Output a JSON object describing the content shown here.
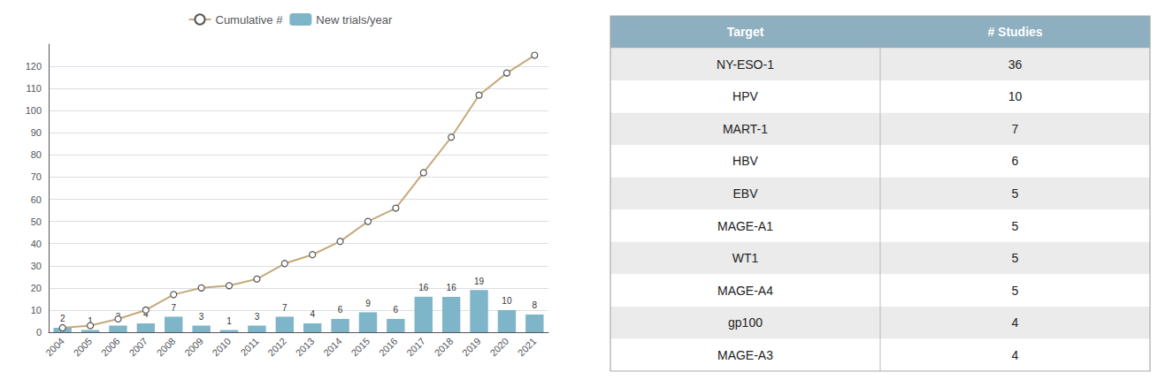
{
  "chart_data": [
    {
      "type": "bar",
      "categories": [
        "2004",
        "2005",
        "2006",
        "2007",
        "2008",
        "2009",
        "2010",
        "2011",
        "2012",
        "2013",
        "2014",
        "2015",
        "2016",
        "2017",
        "2018",
        "2019",
        "2020",
        "2021"
      ],
      "series": [
        {
          "name": "Cumulative #",
          "type": "line",
          "color": "#C4A97A",
          "marker": "circle",
          "values": [
            2,
            3,
            6,
            10,
            17,
            20,
            21,
            24,
            31,
            35,
            41,
            50,
            56,
            72,
            88,
            107,
            117,
            125
          ]
        },
        {
          "name": "New trials/year",
          "type": "bar",
          "color": "#7EB5C8",
          "data_labels": true,
          "values": [
            2,
            1,
            3,
            4,
            7,
            3,
            1,
            3,
            7,
            4,
            6,
            9,
            6,
            16,
            16,
            19,
            10,
            8
          ]
        }
      ],
      "ylim": [
        0,
        130
      ],
      "yticks": [
        0,
        10,
        20,
        30,
        40,
        50,
        60,
        70,
        80,
        90,
        100,
        110,
        120
      ],
      "grid": true,
      "legend": "top"
    },
    {
      "type": "table",
      "columns": [
        "Target",
        "# Studies"
      ],
      "categories": [
        "NY-ESO-1",
        "HPV",
        "MART-1",
        "HBV",
        "EBV",
        "MAGE-A1",
        "WT1",
        "MAGE-A4",
        "gp100",
        "MAGE-A3"
      ],
      "values": [
        36,
        10,
        7,
        6,
        5,
        5,
        5,
        5,
        4,
        4
      ],
      "color": "#8DAFC0"
    }
  ]
}
